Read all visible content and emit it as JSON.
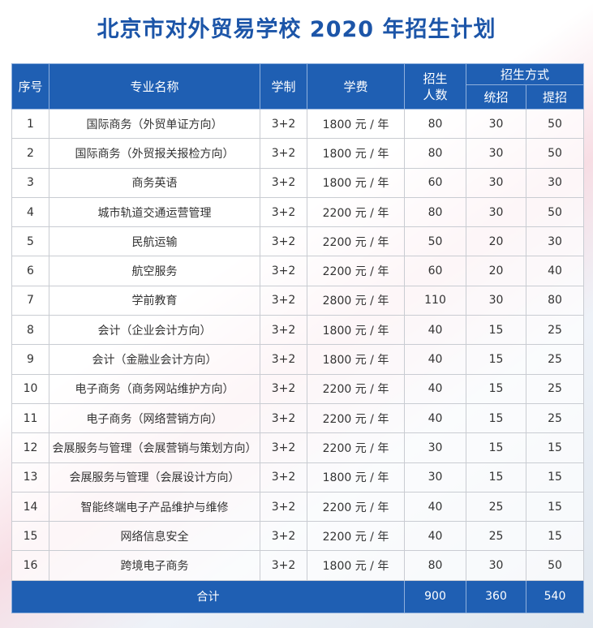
{
  "title": "北京市对外贸易学校 2020 年招生计划",
  "table": {
    "headers": [
      "序号",
      "专业名称",
      "学制",
      "学费",
      "招生人数",
      "招生方式",
      "统招",
      "提招"
    ],
    "rows": [
      [
        "1",
        "国际商务（外贸单证方向）",
        "3+2",
        "1800 元 / 年",
        80,
        30,
        50
      ],
      [
        "2",
        "国际商务（外贸报关报检方向）",
        "3+2",
        "1800 元 / 年",
        80,
        30,
        50
      ],
      [
        "3",
        "商务英语",
        "3+2",
        "1800 元 / 年",
        60,
        30,
        30
      ],
      [
        "4",
        "城市轨道交通运营管理",
        "3+2",
        "2200 元 / 年",
        80,
        30,
        50
      ],
      [
        "5",
        "民航运输",
        "3+2",
        "2200 元 / 年",
        50,
        20,
        30
      ],
      [
        "6",
        "航空服务",
        "3+2",
        "2200 元 / 年",
        60,
        20,
        40
      ],
      [
        "7",
        "学前教育",
        "3+2",
        "2800 元 / 年",
        110,
        30,
        80
      ],
      [
        "8",
        "会计（企业会计方向）",
        "3+2",
        "1800 元 / 年",
        40,
        15,
        25
      ],
      [
        "9",
        "会计（金融业会计方向）",
        "3+2",
        "1800 元 / 年",
        40,
        15,
        25
      ],
      [
        "10",
        "电子商务（商务网站维护方向）",
        "3+2",
        "2200 元 / 年",
        40,
        15,
        25
      ],
      [
        "11",
        "电子商务（网络营销方向）",
        "3+2",
        "2200 元 / 年",
        40,
        15,
        25
      ],
      [
        "12",
        "会展服务与管理（会展营销与策划方向）",
        "3+2",
        "2200 元 / 年",
        30,
        15,
        15
      ],
      [
        "13",
        "会展服务与管理（会展设计方向）",
        "3+2",
        "1800 元 / 年",
        30,
        15,
        15
      ],
      [
        "14",
        "智能终端电子产品维护与维修",
        "3+2",
        "2200 元 / 年",
        40,
        25,
        15
      ],
      [
        "15",
        "网络信息安全",
        "3+2",
        "2200 元 / 年",
        40,
        25,
        15
      ],
      [
        "16",
        "跨境电子商务",
        "3+2",
        "1800 元 / 年",
        80,
        30,
        50
      ]
    ],
    "footer": [
      "合计",
      900,
      360,
      540
    ]
  }
}
